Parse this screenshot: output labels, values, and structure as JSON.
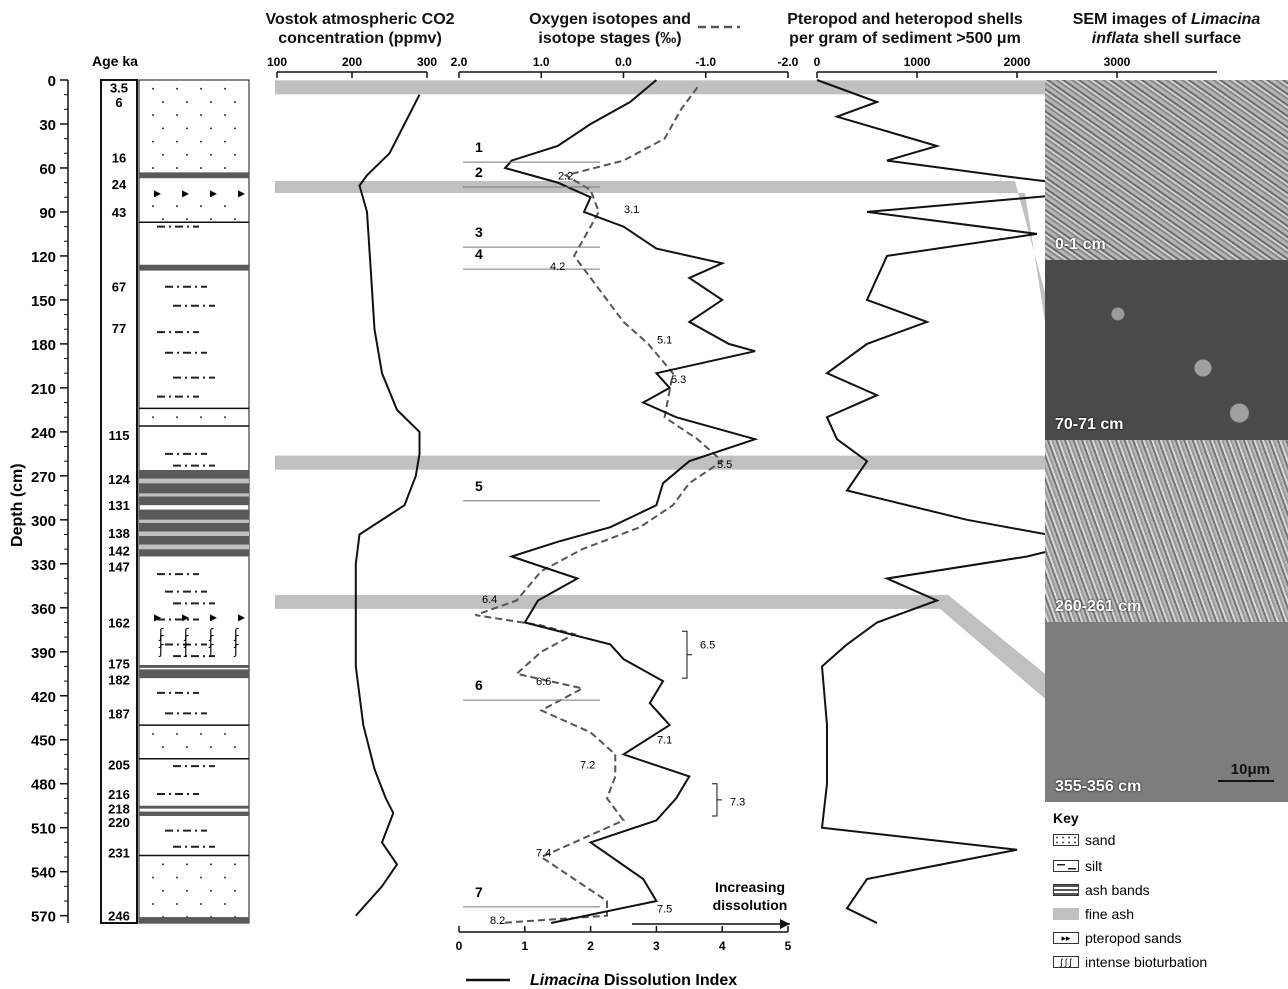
{
  "headers": {
    "co2_l1": "Vostok atmospheric CO2",
    "co2_l2": "concentration (ppmv)",
    "iso_l1": "Oxygen isotopes and",
    "iso_l2": "isotope stages (‰)",
    "ptero_l1": "Pteropod and heteropod shells",
    "ptero_l2": "per gram of sediment >500 μm",
    "sem_l1": "SEM images of",
    "sem_italic": "Limacina",
    "sem_l2a": "inflata",
    "sem_l2b": " shell surface",
    "age": "Age ka"
  },
  "colors": {
    "ash_band": "#5a5a5a",
    "fine_ash": "#c0c0c0",
    "line": "#111111",
    "dashed": "#555555"
  },
  "chart_data": {
    "type": "line",
    "ylabel": "Depth (cm)",
    "ylim": [
      0,
      580
    ],
    "depth_ticks": [
      0,
      30,
      60,
      90,
      120,
      150,
      180,
      210,
      240,
      270,
      300,
      330,
      360,
      390,
      420,
      450,
      480,
      510,
      540,
      570
    ],
    "ages": [
      {
        "age": "3.5",
        "depth": 5
      },
      {
        "age": "6",
        "depth": 15
      },
      {
        "age": "16",
        "depth": 53
      },
      {
        "age": "24",
        "depth": 71
      },
      {
        "age": "43",
        "depth": 90
      },
      {
        "age": "67",
        "depth": 141
      },
      {
        "age": "77",
        "depth": 169
      },
      {
        "age": "115",
        "depth": 242
      },
      {
        "age": "124",
        "depth": 272
      },
      {
        "age": "131",
        "depth": 290
      },
      {
        "age": "138",
        "depth": 309
      },
      {
        "age": "142",
        "depth": 321
      },
      {
        "age": "147",
        "depth": 332
      },
      {
        "age": "162",
        "depth": 370
      },
      {
        "age": "175",
        "depth": 398
      },
      {
        "age": "182",
        "depth": 409
      },
      {
        "age": "187",
        "depth": 432
      },
      {
        "age": "205",
        "depth": 467
      },
      {
        "age": "216",
        "depth": 487
      },
      {
        "age": "218",
        "depth": 497
      },
      {
        "age": "220",
        "depth": 506
      },
      {
        "age": "231",
        "depth": 527
      },
      {
        "age": "246",
        "depth": 570
      }
    ],
    "lithology_key": [
      "sand",
      "silt",
      "ash bands",
      "fine ash",
      "pteropod sands",
      "intense bioturbation"
    ],
    "co2": {
      "xlabel": "Vostok atmospheric CO2 concentration (ppmv)",
      "xlim": [
        100,
        300
      ],
      "ticks": [
        100,
        200,
        300
      ],
      "points": [
        [
          290,
          10
        ],
        [
          270,
          30
        ],
        [
          250,
          50
        ],
        [
          220,
          65
        ],
        [
          210,
          72
        ],
        [
          220,
          90
        ],
        [
          225,
          130
        ],
        [
          230,
          170
        ],
        [
          240,
          200
        ],
        [
          260,
          225
        ],
        [
          290,
          240
        ],
        [
          290,
          255
        ],
        [
          285,
          270
        ],
        [
          270,
          290
        ],
        [
          210,
          310
        ],
        [
          205,
          330
        ],
        [
          205,
          360
        ],
        [
          205,
          400
        ],
        [
          215,
          440
        ],
        [
          230,
          470
        ],
        [
          245,
          490
        ],
        [
          255,
          500
        ],
        [
          240,
          520
        ],
        [
          260,
          535
        ],
        [
          240,
          550
        ],
        [
          205,
          570
        ]
      ]
    },
    "oxygen_isotopes": {
      "xlabel": "Oxygen isotopes and isotope stages (‰)",
      "xlim": [
        2.0,
        -2.0
      ],
      "ticks": [
        2.0,
        1.0,
        0.0,
        -1.0,
        -2.0
      ],
      "points": [
        [
          -0.9,
          5
        ],
        [
          -0.7,
          20
        ],
        [
          -0.5,
          40
        ],
        [
          0.0,
          55
        ],
        [
          0.7,
          65
        ],
        [
          0.4,
          75
        ],
        [
          0.3,
          90
        ],
        [
          0.4,
          100
        ],
        [
          0.6,
          120
        ],
        [
          0.4,
          135
        ],
        [
          0.2,
          150
        ],
        [
          0.0,
          165
        ],
        [
          -0.3,
          180
        ],
        [
          -0.6,
          200
        ],
        [
          -0.5,
          230
        ],
        [
          -0.9,
          245
        ],
        [
          -1.2,
          260
        ],
        [
          -0.8,
          275
        ],
        [
          -0.6,
          290
        ],
        [
          -0.2,
          305
        ],
        [
          0.5,
          320
        ],
        [
          1.0,
          335
        ],
        [
          1.3,
          355
        ],
        [
          1.8,
          365
        ],
        [
          1.0,
          372
        ],
        [
          0.6,
          378
        ],
        [
          1.0,
          390
        ],
        [
          1.3,
          405
        ],
        [
          0.5,
          415
        ],
        [
          1.0,
          430
        ],
        [
          0.4,
          445
        ],
        [
          0.1,
          460
        ],
        [
          0.1,
          475
        ],
        [
          0.2,
          490
        ],
        [
          0.0,
          505
        ],
        [
          0.6,
          520
        ],
        [
          1.0,
          530
        ],
        [
          0.6,
          545
        ],
        [
          0.2,
          560
        ],
        [
          0.2,
          570
        ],
        [
          1.5,
          575
        ]
      ],
      "stage_labels": [
        {
          "label": "1",
          "depth": 56,
          "marine": true
        },
        {
          "label": "2",
          "depth": 73,
          "marine": true
        },
        {
          "label": "3",
          "depth": 114,
          "marine": true
        },
        {
          "label": "4",
          "depth": 129,
          "marine": true
        },
        {
          "label": "5",
          "depth": 287,
          "marine": true
        },
        {
          "label": "6",
          "depth": 423,
          "marine": true
        },
        {
          "label": "7",
          "depth": 564,
          "marine": true
        },
        {
          "label": "2.2",
          "depth": 65
        },
        {
          "label": "3.1",
          "depth": 88
        },
        {
          "label": "4.2",
          "depth": 127
        },
        {
          "label": "5.1",
          "depth": 177
        },
        {
          "label": "5.3",
          "depth": 204
        },
        {
          "label": "5.5",
          "depth": 262
        },
        {
          "label": "6.4",
          "depth": 354
        },
        {
          "label": "6.5",
          "depth": 385
        },
        {
          "label": "6.6",
          "depth": 410
        },
        {
          "label": "7.1",
          "depth": 450
        },
        {
          "label": "7.2",
          "depth": 467
        },
        {
          "label": "7.3",
          "depth": 492
        },
        {
          "label": "7.4",
          "depth": 527
        },
        {
          "label": "7.5",
          "depth": 565
        },
        {
          "label": "8.2",
          "depth": 573
        }
      ]
    },
    "dissolution_index": {
      "xlabel": "Limacina Dissolution Index",
      "xlim": [
        0,
        5
      ],
      "ticks": [
        0,
        1,
        2,
        3,
        4,
        5
      ],
      "annotation": "Increasing dissolution",
      "points": [
        [
          3.0,
          0
        ],
        [
          2.6,
          15
        ],
        [
          2.0,
          30
        ],
        [
          1.5,
          45
        ],
        [
          0.8,
          55
        ],
        [
          0.7,
          60
        ],
        [
          1.5,
          70
        ],
        [
          2.0,
          80
        ],
        [
          1.9,
          90
        ],
        [
          2.5,
          100
        ],
        [
          3.0,
          115
        ],
        [
          4.0,
          125
        ],
        [
          3.5,
          135
        ],
        [
          4.0,
          150
        ],
        [
          3.5,
          165
        ],
        [
          4.1,
          180
        ],
        [
          4.5,
          185
        ],
        [
          3.0,
          200
        ],
        [
          3.2,
          210
        ],
        [
          2.8,
          220
        ],
        [
          3.3,
          230
        ],
        [
          4.5,
          245
        ],
        [
          3.5,
          260
        ],
        [
          3.1,
          275
        ],
        [
          3.0,
          290
        ],
        [
          2.3,
          305
        ],
        [
          1.5,
          315
        ],
        [
          0.8,
          325
        ],
        [
          1.8,
          340
        ],
        [
          1.2,
          355
        ],
        [
          1.0,
          370
        ],
        [
          2.3,
          385
        ],
        [
          2.5,
          395
        ],
        [
          3.1,
          410
        ],
        [
          2.9,
          425
        ],
        [
          3.2,
          440
        ],
        [
          2.5,
          460
        ],
        [
          3.5,
          475
        ],
        [
          3.3,
          490
        ],
        [
          3.0,
          505
        ],
        [
          2.0,
          520
        ],
        [
          2.8,
          545
        ],
        [
          3.0,
          560
        ],
        [
          1.4,
          575
        ]
      ]
    },
    "pteropods": {
      "xlabel": "Pteropod and heteropod shells per gram of sediment >500 μm",
      "xlim": [
        0,
        4000
      ],
      "ticks": [
        0,
        1000,
        2000,
        3000
      ],
      "points": [
        [
          0,
          0
        ],
        [
          600,
          15
        ],
        [
          200,
          25
        ],
        [
          1200,
          45
        ],
        [
          700,
          55
        ],
        [
          1800,
          65
        ],
        [
          3000,
          75
        ],
        [
          500,
          90
        ],
        [
          2200,
          105
        ],
        [
          700,
          120
        ],
        [
          500,
          150
        ],
        [
          1100,
          165
        ],
        [
          500,
          180
        ],
        [
          100,
          200
        ],
        [
          600,
          215
        ],
        [
          100,
          230
        ],
        [
          200,
          245
        ],
        [
          500,
          260
        ],
        [
          300,
          280
        ],
        [
          1500,
          300
        ],
        [
          2700,
          315
        ],
        [
          2100,
          325
        ],
        [
          700,
          340
        ],
        [
          1200,
          355
        ],
        [
          600,
          370
        ],
        [
          300,
          385
        ],
        [
          50,
          400
        ],
        [
          100,
          440
        ],
        [
          100,
          480
        ],
        [
          50,
          510
        ],
        [
          2000,
          525
        ],
        [
          500,
          545
        ],
        [
          300,
          565
        ],
        [
          600,
          575
        ]
      ]
    },
    "fine_ash_layers": [
      5,
      73,
      258,
      355
    ],
    "sem_images": [
      {
        "label": "0-1 cm",
        "depth": 0
      },
      {
        "label": "70-71 cm",
        "depth": 70
      },
      {
        "label": "260-261 cm",
        "depth": 260
      },
      {
        "label": "355-356 cm",
        "depth": 355
      }
    ],
    "scale_bar": "10μm"
  },
  "key": {
    "title": "Key",
    "sand": "sand",
    "silt": "silt",
    "ash": "ash bands",
    "fineash": "fine ash",
    "ptero": "pteropod sands",
    "bio": "intense bioturbation"
  }
}
